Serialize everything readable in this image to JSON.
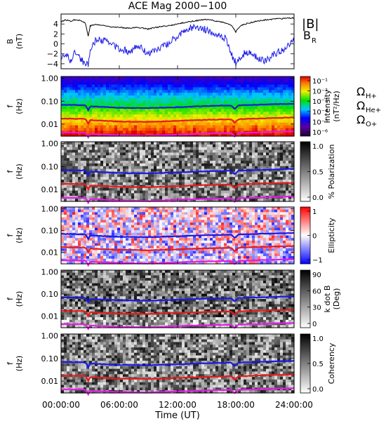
{
  "chart_data": {
    "title": "ACE Mag 2000−100",
    "xlabel": "Time (UT)",
    "x_ticks": [
      "00:00:00",
      "06:00:00",
      "12:00:00",
      "18:00:00",
      "24:00:00"
    ],
    "x_range_hours": [
      0,
      24
    ],
    "panels": [
      {
        "type": "line",
        "ylabel_top": "B",
        "ylabel_bottom": "(nT)",
        "ylim": [
          -5,
          6
        ],
        "y_ticks": [
          "4",
          "2",
          "0",
          "−2",
          "−4"
        ],
        "y_tick_values": [
          4,
          2,
          0,
          -2,
          -4
        ],
        "legend": [
          {
            "label": "|B|",
            "color": "#000000"
          },
          {
            "label": "B",
            "sub": "R",
            "color": "#1a1ae6"
          }
        ],
        "series": [
          {
            "color": "#000000",
            "x": [
              0,
              0.5,
              1,
              1.5,
              2,
              2.5,
              2.8,
              3,
              3.5,
              4,
              5,
              6,
              7,
              8,
              9,
              10,
              11,
              12,
              13,
              14,
              15,
              16,
              17,
              17.5,
              18,
              18.5,
              19,
              20,
              21,
              22,
              23,
              24
            ],
            "y": [
              4.5,
              4.8,
              4.6,
              4.9,
              4.7,
              4.2,
              1.6,
              3.6,
              3.9,
              3.8,
              3.5,
              3.3,
              3.2,
              3.3,
              3.0,
              3.4,
              3.6,
              4.0,
              4.4,
              4.7,
              4.9,
              4.6,
              4.2,
              3.8,
              2.4,
              3.7,
              4.0,
              4.5,
              4.8,
              5.0,
              5.1,
              5.2
            ]
          },
          {
            "color": "#1a1ae6",
            "x": [
              0,
              0.5,
              1,
              1.5,
              2,
              2.5,
              2.8,
              3,
              3.5,
              4,
              5,
              6,
              7,
              8,
              9,
              10,
              11,
              12,
              13,
              14,
              15,
              16,
              17,
              17.5,
              18,
              18.5,
              19,
              20,
              21,
              22,
              23,
              24
            ],
            "y": [
              -3.0,
              -2.0,
              -3.5,
              -1.5,
              -3.0,
              -4.0,
              -4.2,
              -1.0,
              0.5,
              1.0,
              0.2,
              -1.0,
              -1.5,
              -0.5,
              -2.0,
              -1.0,
              0.0,
              1.5,
              3.0,
              3.5,
              2.8,
              2.0,
              1.0,
              -2.0,
              -3.8,
              -3.0,
              -1.5,
              -2.5,
              -3.5,
              -2.0,
              -1.0,
              0.5
            ]
          }
        ]
      },
      {
        "type": "heatmap",
        "ylabel_top": "f",
        "ylabel_bottom": "(Hz)",
        "y_scale": "log",
        "ylim": [
          0.003,
          1.2
        ],
        "y_ticks": [
          "1.00",
          "0.10",
          "0.01"
        ],
        "y_tick_values": [
          1.0,
          0.1,
          0.01
        ],
        "colorscale": "rainbow",
        "colorbar_label": "Intensity",
        "colorbar_unit": "(nT²/Hz)",
        "colorbar_ticks": [
          "10⁻¹",
          "10⁻²",
          "10⁻³",
          "10⁻⁴",
          "10⁻⁵",
          "10⁻⁶"
        ],
        "legend": [
          {
            "label": "Ω",
            "sub": "H+",
            "color": "#1a1ae6"
          },
          {
            "label": "Ω",
            "sub": "He+",
            "color": "#e61a1a"
          },
          {
            "label": "Ω",
            "sub": "O+",
            "color": "#e61ae6"
          }
        ]
      },
      {
        "type": "heatmap",
        "ylabel_top": "f",
        "ylabel_bottom": "(Hz)",
        "y_scale": "log",
        "ylim": [
          0.003,
          1.2
        ],
        "y_ticks": [
          "1.00",
          "0.10",
          "0.01"
        ],
        "y_tick_values": [
          1.0,
          0.1,
          0.01
        ],
        "colorscale": "grayscale",
        "colorbar_label": "% Polarization",
        "colorbar_ticks": [
          "1.0",
          "0.5",
          "0.0"
        ]
      },
      {
        "type": "heatmap",
        "ylabel_top": "f",
        "ylabel_bottom": "(Hz)",
        "y_scale": "log",
        "ylim": [
          0.003,
          1.2
        ],
        "y_ticks": [
          "1.00",
          "0.10",
          "0.01"
        ],
        "y_tick_values": [
          1.0,
          0.1,
          0.01
        ],
        "colorscale": "red-white-blue",
        "colorbar_label": "Ellipticity",
        "colorbar_ticks": [
          "1",
          "0",
          "−1"
        ]
      },
      {
        "type": "heatmap",
        "ylabel_top": "f",
        "ylabel_bottom": "(Hz)",
        "y_scale": "log",
        "ylim": [
          0.003,
          1.2
        ],
        "y_ticks": [
          "1.00",
          "0.10",
          "0.01"
        ],
        "y_tick_values": [
          1.0,
          0.1,
          0.01
        ],
        "colorscale": "grayscale",
        "colorbar_label": "k dot B",
        "colorbar_unit": "(Deg)",
        "colorbar_ticks": [
          "90",
          "60",
          "30",
          "0"
        ]
      },
      {
        "type": "heatmap",
        "ylabel_top": "f",
        "ylabel_bottom": "(Hz)",
        "y_scale": "log",
        "ylim": [
          0.003,
          1.2
        ],
        "y_ticks": [
          "1.00",
          "0.10",
          "0.01"
        ],
        "y_tick_values": [
          1.0,
          0.1,
          0.01
        ],
        "colorscale": "grayscale",
        "colorbar_label": "Coherency",
        "colorbar_ticks": [
          "1.0",
          "0.5",
          "0.0"
        ]
      }
    ],
    "gyrofrequency_lines": [
      {
        "ion": "H+",
        "color": "#1a1ae6",
        "x": [
          0,
          2,
          2.5,
          2.8,
          3.0,
          3.5,
          6,
          9,
          12,
          15,
          17.5,
          17.9,
          18.3,
          21,
          24
        ],
        "y": [
          0.07,
          0.068,
          0.068,
          0.04,
          0.06,
          0.058,
          0.052,
          0.05,
          0.055,
          0.062,
          0.065,
          0.045,
          0.066,
          0.072,
          0.078
        ]
      },
      {
        "ion": "He+",
        "color": "#e61a1a",
        "x": [
          0,
          2,
          2.5,
          2.8,
          3.0,
          3.5,
          6,
          9,
          12,
          15,
          17.5,
          17.9,
          18.3,
          21,
          24
        ],
        "y": [
          0.0175,
          0.017,
          0.017,
          0.01,
          0.015,
          0.0145,
          0.013,
          0.0125,
          0.0138,
          0.0155,
          0.0163,
          0.0112,
          0.0165,
          0.018,
          0.0195
        ]
      },
      {
        "ion": "O+",
        "color": "#e61ae6",
        "x": [
          0,
          2,
          2.5,
          2.8,
          3.0,
          3.5,
          6,
          9,
          12,
          15,
          17.5,
          17.9,
          18.3,
          21,
          24
        ],
        "y": [
          0.0044,
          0.0043,
          0.0043,
          0.0026,
          0.0038,
          0.0036,
          0.0033,
          0.0031,
          0.0035,
          0.0039,
          0.0041,
          0.0028,
          0.0041,
          0.0045,
          0.0049
        ]
      }
    ]
  }
}
